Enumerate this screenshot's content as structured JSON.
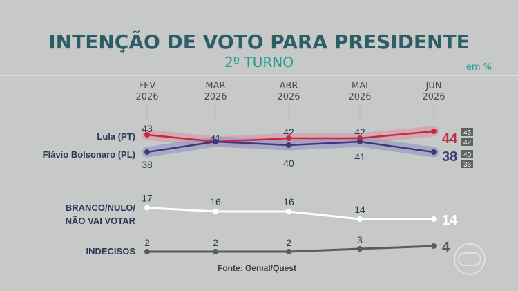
{
  "title": "INTENÇÃO DE VOTO PARA PRESIDENTE",
  "subtitle": "2º TURNO",
  "unit": "em %",
  "source": "Fonte: Genial/Quest",
  "watermark_icon": "globo-logo-icon",
  "colors": {
    "lula": "#c42a3f",
    "flavio": "#3c3a7a",
    "branco": "#ffffff",
    "indecisos": "#5b5b5b",
    "label_text": "#2b3a55",
    "title": "#2d5e68",
    "accent": "#1f9c8f"
  },
  "chart_data": {
    "type": "line",
    "categories": [
      [
        "FEV",
        "2026"
      ],
      [
        "MAR",
        "2026"
      ],
      [
        "ABR",
        "2026"
      ],
      [
        "MAI",
        "2026"
      ],
      [
        "JUN",
        "2026"
      ]
    ],
    "series": [
      {
        "name": "Lula (PT)",
        "values": [
          43,
          41,
          42,
          42,
          44
        ],
        "margin_high": 46,
        "margin_low": 42
      },
      {
        "name": "Flávio Bolsonaro (PL)",
        "values": [
          38,
          41,
          40,
          41,
          38
        ],
        "margin_high": 40,
        "margin_low": 36
      },
      {
        "name": "BRANCO/NULO/ NÃO VAI VOTAR",
        "values": [
          17,
          16,
          16,
          14,
          14
        ]
      },
      {
        "name": "INDECISOS",
        "values": [
          2,
          2,
          2,
          3,
          4
        ]
      }
    ],
    "series_label_lines": [
      [
        "Lula (PT)"
      ],
      [
        "Flávio Bolsonaro (PL)"
      ],
      [
        "BRANCO/NULO/",
        "NÃO VAI VOTAR"
      ],
      [
        "INDECISOS"
      ]
    ]
  }
}
